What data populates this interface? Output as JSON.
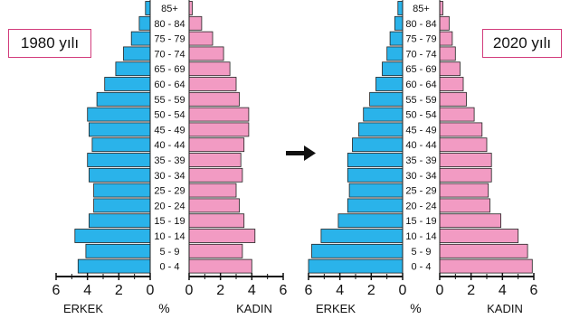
{
  "chart_data": [
    {
      "type": "bar",
      "title": "1980 yılı",
      "categories": [
        "0 - 4",
        "5 - 9",
        "10 - 14",
        "15 - 19",
        "20 - 24",
        "25 - 29",
        "30 - 34",
        "35 - 39",
        "40 - 44",
        "45 - 49",
        "50 - 54",
        "55 - 59",
        "60 - 64",
        "65 - 69",
        "70 - 74",
        "75 - 79",
        "80 - 84",
        "85+"
      ],
      "series": [
        {
          "name": "ERKEK",
          "values": [
            4.6,
            4.1,
            4.8,
            3.9,
            3.6,
            3.6,
            3.9,
            4.0,
            3.7,
            3.9,
            4.0,
            3.4,
            2.9,
            2.2,
            1.7,
            1.2,
            0.7,
            0.3
          ]
        },
        {
          "name": "KADIN",
          "values": [
            4.0,
            3.4,
            4.2,
            3.5,
            3.2,
            3.0,
            3.4,
            3.3,
            3.5,
            3.8,
            3.8,
            3.2,
            3.0,
            2.6,
            2.2,
            1.5,
            0.8,
            0.2
          ]
        }
      ],
      "xlabel": "%",
      "xlim": [
        -6,
        6
      ],
      "xticks": [
        "6",
        "4",
        "2",
        "0",
        "2",
        "4",
        "6"
      ]
    },
    {
      "type": "bar",
      "title": "2020 yılı",
      "categories": [
        "0 - 4",
        "5 - 9",
        "10 - 14",
        "15 - 19",
        "20 - 24",
        "25 - 29",
        "30 - 34",
        "35 - 39",
        "40 - 44",
        "45 - 49",
        "50 - 54",
        "55 - 59",
        "60 - 64",
        "65 - 69",
        "70 - 74",
        "75 - 79",
        "80 - 84",
        "85+"
      ],
      "series": [
        {
          "name": "ERKEK",
          "values": [
            6.0,
            5.8,
            5.2,
            4.1,
            3.5,
            3.4,
            3.5,
            3.5,
            3.2,
            2.8,
            2.5,
            2.1,
            1.7,
            1.3,
            1.0,
            0.8,
            0.5,
            0.3
          ]
        },
        {
          "name": "KADIN",
          "values": [
            5.9,
            5.6,
            5.0,
            3.9,
            3.2,
            3.1,
            3.3,
            3.3,
            3.0,
            2.7,
            2.2,
            1.7,
            1.5,
            1.3,
            1.0,
            0.8,
            0.6,
            0.2
          ]
        }
      ],
      "xlabel": "%",
      "xlim": [
        -6,
        6
      ],
      "xticks": [
        "6",
        "4",
        "2",
        "0",
        "2",
        "4",
        "6"
      ]
    }
  ],
  "colors": {
    "male": "#2ab3ea",
    "female": "#f29bc3",
    "accent_border": "#d23c7c",
    "arrow": "#111111"
  },
  "arrow_icon": "right-arrow-icon"
}
